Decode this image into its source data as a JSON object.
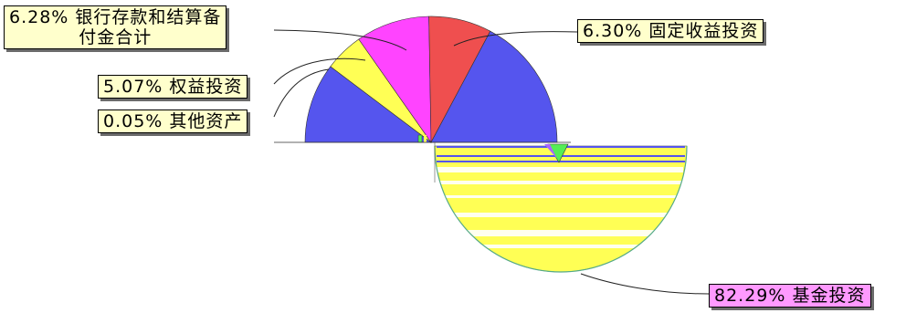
{
  "chart_data": {
    "type": "pie",
    "title": "",
    "slices": [
      {
        "label": "6.30% 固定收益投资",
        "value": 6.3,
        "color": "#ef4f4f"
      },
      {
        "label": "82.29% 基金投资",
        "value": 82.29,
        "color": "#ffff55"
      },
      {
        "label": "0.05% 其他资产",
        "value": 0.05,
        "color": "#55ee55"
      },
      {
        "label": "5.07% 权益投资",
        "value": 5.07,
        "color": "#ffff55"
      },
      {
        "label": "6.28% 银行存款和结算备付金合计",
        "value": 6.28,
        "color": "#ff44ff"
      }
    ],
    "labels": {
      "bank": {
        "line1": "6.28% 银行存款和结算备",
        "line2": "付金合计"
      },
      "equity": "5.07% 权益投资",
      "other": "0.05% 其他资产",
      "fixed": "6.30% 固定收益投资",
      "fund": "82.29% 基金投资"
    },
    "colors": {
      "blue_band": "#5555ee",
      "label_bg": "#ffffcc",
      "fund_label_bg": "#ff99ff"
    },
    "legend": "none",
    "grid": false
  }
}
